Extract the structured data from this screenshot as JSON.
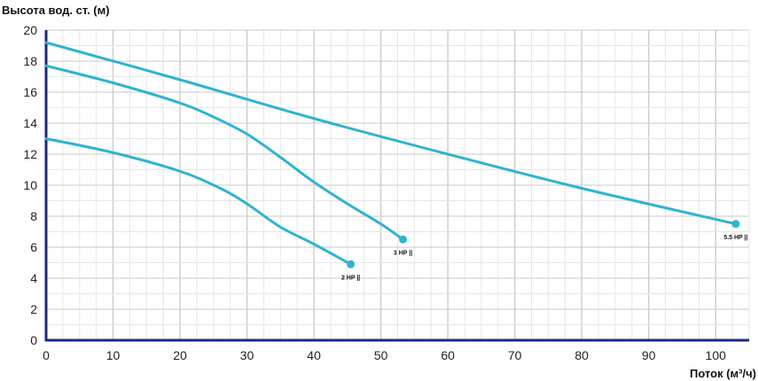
{
  "chart_data": {
    "type": "line",
    "ylabel": "Высота вод. ст. (м)",
    "xlabel": "Поток (м³/ч)",
    "xlim": [
      0,
      105
    ],
    "ylim": [
      0,
      20
    ],
    "xticks": [
      0,
      10,
      20,
      30,
      40,
      50,
      60,
      70,
      80,
      90,
      100
    ],
    "yticks": [
      0,
      2,
      4,
      6,
      8,
      10,
      12,
      14,
      16,
      18,
      20
    ],
    "grid": true,
    "series": [
      {
        "name": "2 HP",
        "label": "2 HP ||",
        "points": [
          [
            0,
            13.0
          ],
          [
            10,
            12.1
          ],
          [
            20,
            10.9
          ],
          [
            26,
            9.8
          ],
          [
            30,
            8.8
          ],
          [
            35,
            7.3
          ],
          [
            40,
            6.2
          ],
          [
            45.5,
            4.9
          ]
        ]
      },
      {
        "name": "3 HP",
        "label": "3 HP ||",
        "points": [
          [
            0,
            17.7
          ],
          [
            10,
            16.6
          ],
          [
            20,
            15.3
          ],
          [
            25,
            14.4
          ],
          [
            30,
            13.3
          ],
          [
            35,
            11.8
          ],
          [
            40,
            10.2
          ],
          [
            45,
            8.8
          ],
          [
            50,
            7.5
          ],
          [
            53.3,
            6.5
          ]
        ]
      },
      {
        "name": "5.5 HP",
        "label": "5.5 HP ||",
        "points": [
          [
            0,
            19.2
          ],
          [
            20,
            16.8
          ],
          [
            40,
            14.3
          ],
          [
            60,
            12.0
          ],
          [
            80,
            9.8
          ],
          [
            103,
            7.5
          ]
        ]
      }
    ],
    "colors": {
      "line": "#2fb3d1",
      "axis": "#1b2a7a",
      "grid_major": "#c9c9c9",
      "grid_minor": "#e6e6e6"
    }
  }
}
